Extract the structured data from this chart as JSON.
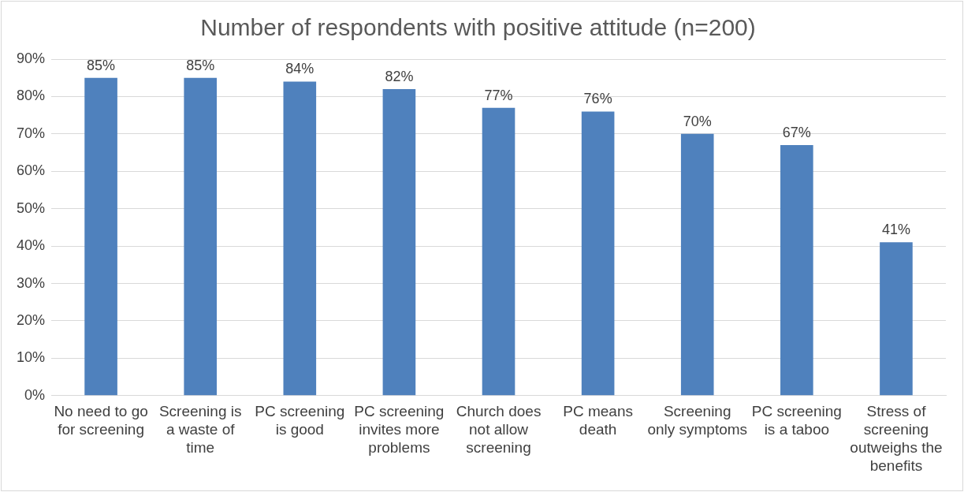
{
  "chart_data": {
    "type": "bar",
    "title": "Number of respondents with positive attitude (n=200)",
    "categories": [
      "No need to go for screening",
      "Screening is a waste of time",
      "PC screening is good",
      "PC screening invites more problems",
      "Church does not allow screening",
      "PC means death",
      "Screening only symptoms",
      "PC screening is a taboo",
      "Stress of screening outweighs the benefits"
    ],
    "values": [
      85,
      85,
      84,
      82,
      77,
      76,
      70,
      67,
      41
    ],
    "value_labels": [
      "85%",
      "85%",
      "84%",
      "82%",
      "77%",
      "76%",
      "70%",
      "67%",
      "41%"
    ],
    "color": "#4f81bd",
    "ylim": [
      0,
      90
    ],
    "yticks": [
      {
        "value": 0,
        "label": "0%"
      },
      {
        "value": 10,
        "label": "10%"
      },
      {
        "value": 20,
        "label": "20%"
      },
      {
        "value": 30,
        "label": "30%"
      },
      {
        "value": 40,
        "label": "40%"
      },
      {
        "value": 50,
        "label": "50%"
      },
      {
        "value": 60,
        "label": "60%"
      },
      {
        "value": 70,
        "label": "70%"
      },
      {
        "value": 80,
        "label": "80%"
      },
      {
        "value": 90,
        "label": "90%"
      }
    ],
    "grid": "y",
    "legend": false
  }
}
